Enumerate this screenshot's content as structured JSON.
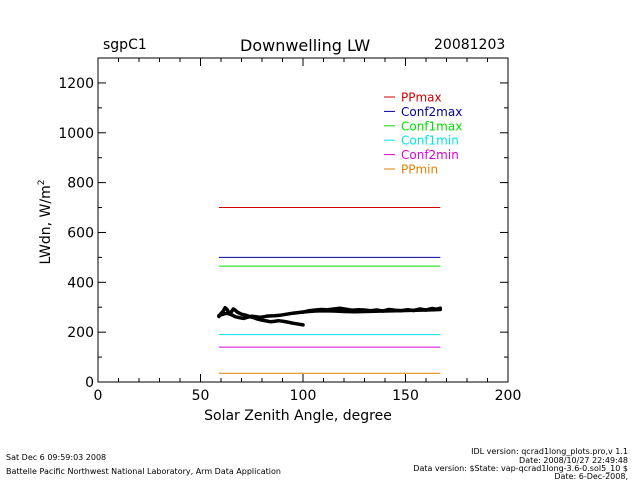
{
  "header": {
    "site": "sgpC1",
    "title": "Downwelling LW",
    "date": "20081203"
  },
  "footer": {
    "left_line1": "Sat Dec  6 09:59:03 2008",
    "left_line2": "Battelle Pacific Northwest National Laboratory, Arm Data Application",
    "right_line1": "IDL version: qcrad1long_plots.pro,v 1.1",
    "right_line2": "Date: 2008/10/27 22:49:48",
    "right_line3": "Data version: $State: vap-qcrad1long-3.6-0.sol5_10 $",
    "right_line4": "Date: 6-Dec-2008,"
  },
  "chart_data": {
    "type": "line",
    "title": "Downwelling LW",
    "xlabel": "Solar Zenith Angle, degree",
    "ylabel": "LWdn, W/m",
    "ylabel_superscript": "2",
    "xlim": [
      0,
      200
    ],
    "ylim": [
      0,
      1300
    ],
    "xticks": [
      0,
      50,
      100,
      150,
      200
    ],
    "yticks": [
      0,
      200,
      400,
      600,
      800,
      1000,
      1200
    ],
    "grid": false,
    "legend_position": "top-right inside",
    "limits": [
      {
        "name": "PPmax",
        "value": 700,
        "color": "#cc0000"
      },
      {
        "name": "Conf2max",
        "value": 500,
        "color": "#000099"
      },
      {
        "name": "Conf1max",
        "value": 465,
        "color": "#00dd00"
      },
      {
        "name": "Conf1min",
        "value": 190,
        "color": "#00e5e5"
      },
      {
        "name": "Conf2min",
        "value": 140,
        "color": "#dd00dd"
      },
      {
        "name": "PPmin",
        "value": 35,
        "color": "#e08000"
      }
    ],
    "limit_x_range": [
      59,
      167
    ],
    "series": [
      {
        "color": "#000000",
        "points": [
          [
            59,
            263
          ],
          [
            60,
            275
          ],
          [
            61,
            284
          ],
          [
            62,
            298
          ],
          [
            63,
            290
          ],
          [
            64,
            276
          ],
          [
            65,
            281
          ],
          [
            66,
            293
          ],
          [
            67,
            288
          ],
          [
            68,
            280
          ],
          [
            70,
            272
          ],
          [
            72,
            268
          ],
          [
            74,
            262
          ],
          [
            76,
            258
          ],
          [
            78,
            252
          ],
          [
            80,
            248
          ],
          [
            82,
            245
          ],
          [
            84,
            242
          ],
          [
            86,
            243
          ],
          [
            88,
            246
          ],
          [
            90,
            244
          ],
          [
            92,
            241
          ],
          [
            95,
            236
          ],
          [
            98,
            232
          ],
          [
            100,
            229
          ]
        ]
      },
      {
        "color": "#000000",
        "points": [
          [
            59,
            267
          ],
          [
            61,
            272
          ],
          [
            63,
            276
          ],
          [
            65,
            270
          ],
          [
            67,
            262
          ],
          [
            69,
            258
          ],
          [
            71,
            255
          ],
          [
            73,
            260
          ],
          [
            75,
            264
          ],
          [
            77,
            262
          ],
          [
            79,
            259
          ],
          [
            81,
            262
          ],
          [
            83,
            265
          ],
          [
            86,
            266
          ],
          [
            89,
            268
          ],
          [
            92,
            272
          ],
          [
            95,
            276
          ],
          [
            98,
            279
          ],
          [
            100,
            281
          ],
          [
            103,
            283
          ],
          [
            106,
            285
          ],
          [
            110,
            286
          ],
          [
            115,
            285
          ],
          [
            120,
            283
          ],
          [
            125,
            282
          ],
          [
            130,
            283
          ],
          [
            135,
            284
          ],
          [
            140,
            285
          ],
          [
            145,
            286
          ],
          [
            150,
            287
          ],
          [
            155,
            288
          ],
          [
            160,
            289
          ],
          [
            164,
            290
          ],
          [
            167,
            291
          ]
        ]
      },
      {
        "color": "#000000",
        "points": [
          [
            100,
            280
          ],
          [
            103,
            286
          ],
          [
            106,
            289
          ],
          [
            109,
            291
          ],
          [
            112,
            290
          ],
          [
            115,
            293
          ],
          [
            118,
            296
          ],
          [
            121,
            292
          ],
          [
            124,
            288
          ],
          [
            127,
            290
          ],
          [
            130,
            289
          ],
          [
            133,
            286
          ],
          [
            136,
            289
          ],
          [
            139,
            285
          ],
          [
            142,
            291
          ],
          [
            145,
            288
          ],
          [
            148,
            286
          ],
          [
            151,
            290
          ],
          [
            154,
            287
          ],
          [
            157,
            293
          ],
          [
            160,
            289
          ],
          [
            163,
            295
          ],
          [
            165,
            292
          ],
          [
            167,
            296
          ]
        ]
      }
    ]
  }
}
